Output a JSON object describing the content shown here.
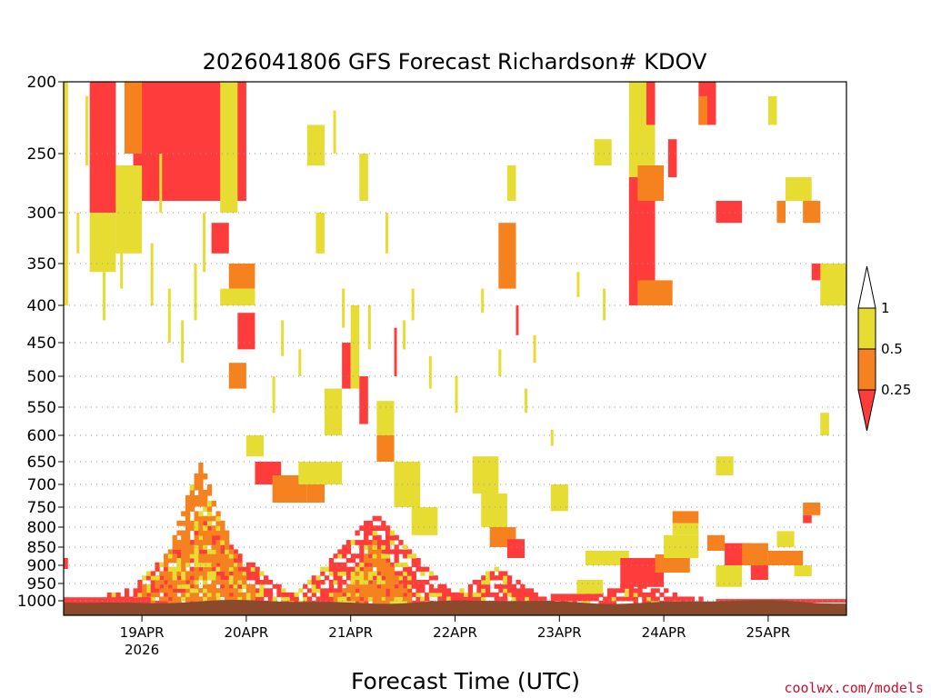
{
  "chart_data": {
    "type": "heatmap",
    "title": "2026041806 GFS Forecast Richardson# KDOV",
    "xlabel": "Forecast Time (UTC)",
    "credit": "coolwx.com/models",
    "y_axis": {
      "scale": "pressure",
      "range": [
        1020,
        200
      ],
      "ticks": [
        200,
        250,
        300,
        350,
        400,
        450,
        500,
        550,
        600,
        650,
        700,
        750,
        800,
        850,
        900,
        950,
        1000
      ],
      "tick_labels": [
        "200",
        "250",
        "300",
        "350",
        "400",
        "450",
        "500",
        "550",
        "600",
        "650",
        "700",
        "750",
        "800",
        "850",
        "900",
        "950",
        "1000"
      ],
      "grid": "dotted"
    },
    "x_axis": {
      "range_hours": [
        0,
        180
      ],
      "ticks": [
        {
          "hour": 18,
          "label": "19APR",
          "sublabel": "2026"
        },
        {
          "hour": 42,
          "label": "20APR",
          "sublabel": ""
        },
        {
          "hour": 66,
          "label": "21APR",
          "sublabel": ""
        },
        {
          "hour": 90,
          "label": "22APR",
          "sublabel": ""
        },
        {
          "hour": 114,
          "label": "23APR",
          "sublabel": ""
        },
        {
          "hour": 138,
          "label": "24APR",
          "sublabel": ""
        },
        {
          "hour": 162,
          "label": "25APR",
          "sublabel": ""
        }
      ]
    },
    "legend": {
      "placement": "right",
      "bins": [
        {
          "range": "<0.25",
          "color": "#ff3c3c"
        },
        {
          "range": "0.25-0.5",
          "color": "#f5821e"
        },
        {
          "range": "0.5-1",
          "color": "#e6dc32"
        },
        {
          "range": ">1",
          "color": "#ffffff"
        }
      ],
      "labels": [
        "1",
        "0.5",
        "0.25"
      ]
    },
    "colors": {
      "low": "#ff3c3c",
      "mid": "#f5821e",
      "high": "#e6dc32",
      "ground": "#8b4a2b"
    },
    "regions": [
      {
        "bin": "high",
        "t": [
          0,
          1
        ],
        "p": [
          200,
          400
        ]
      },
      {
        "bin": "low",
        "t": [
          0,
          1
        ],
        "p": [
          880,
          910
        ]
      },
      {
        "bin": "low",
        "t": [
          6,
          12
        ],
        "p": [
          200,
          300
        ]
      },
      {
        "bin": "high",
        "t": [
          6,
          12
        ],
        "p": [
          300,
          360
        ]
      },
      {
        "bin": "low",
        "t": [
          16,
          42
        ],
        "p": [
          200,
          290
        ]
      },
      {
        "bin": "mid",
        "t": [
          14,
          18
        ],
        "p": [
          200,
          250
        ]
      },
      {
        "bin": "high",
        "t": [
          12,
          18
        ],
        "p": [
          260,
          340
        ]
      },
      {
        "bin": "high",
        "t": [
          36,
          40
        ],
        "p": [
          200,
          300
        ]
      },
      {
        "bin": "low",
        "t": [
          34,
          38
        ],
        "p": [
          310,
          340
        ]
      },
      {
        "bin": "mid",
        "t": [
          38,
          44
        ],
        "p": [
          350,
          380
        ]
      },
      {
        "bin": "high",
        "t": [
          36,
          44
        ],
        "p": [
          380,
          400
        ]
      },
      {
        "bin": "high",
        "t": [
          56,
          60
        ],
        "p": [
          230,
          260
        ]
      },
      {
        "bin": "high",
        "t": [
          58,
          60
        ],
        "p": [
          300,
          340
        ]
      },
      {
        "bin": "high",
        "t": [
          68,
          70
        ],
        "p": [
          250,
          290
        ]
      },
      {
        "bin": "high",
        "t": [
          102,
          104
        ],
        "p": [
          260,
          290
        ]
      },
      {
        "bin": "mid",
        "t": [
          100,
          104
        ],
        "p": [
          310,
          380
        ]
      },
      {
        "bin": "high",
        "t": [
          122,
          126
        ],
        "p": [
          240,
          260
        ]
      },
      {
        "bin": "high",
        "t": [
          130,
          136
        ],
        "p": [
          200,
          270
        ]
      },
      {
        "bin": "low",
        "t": [
          130,
          136
        ],
        "p": [
          270,
          400
        ]
      },
      {
        "bin": "mid",
        "t": [
          132,
          138
        ],
        "p": [
          260,
          290
        ]
      },
      {
        "bin": "mid",
        "t": [
          132,
          140
        ],
        "p": [
          370,
          400
        ]
      },
      {
        "bin": "low",
        "t": [
          134,
          136
        ],
        "p": [
          200,
          230
        ]
      },
      {
        "bin": "low",
        "t": [
          139,
          141
        ],
        "p": [
          240,
          270
        ]
      },
      {
        "bin": "low",
        "t": [
          146,
          150
        ],
        "p": [
          200,
          230
        ]
      },
      {
        "bin": "mid",
        "t": [
          146,
          148
        ],
        "p": [
          210,
          230
        ]
      },
      {
        "bin": "low",
        "t": [
          150,
          156
        ],
        "p": [
          290,
          310
        ]
      },
      {
        "bin": "mid",
        "t": [
          164,
          166
        ],
        "p": [
          290,
          310
        ]
      },
      {
        "bin": "high",
        "t": [
          162,
          164
        ],
        "p": [
          210,
          230
        ]
      },
      {
        "bin": "high",
        "t": [
          166,
          172
        ],
        "p": [
          270,
          290
        ]
      },
      {
        "bin": "mid",
        "t": [
          170,
          174
        ],
        "p": [
          290,
          310
        ]
      },
      {
        "bin": "low",
        "t": [
          172,
          176
        ],
        "p": [
          350,
          370
        ]
      },
      {
        "bin": "high",
        "t": [
          174,
          180
        ],
        "p": [
          350,
          400
        ]
      },
      {
        "bin": "high",
        "t": [
          174,
          176
        ],
        "p": [
          560,
          600
        ]
      },
      {
        "bin": "low",
        "t": [
          40,
          44
        ],
        "p": [
          410,
          460
        ]
      },
      {
        "bin": "mid",
        "t": [
          38,
          42
        ],
        "p": [
          480,
          520
        ]
      },
      {
        "bin": "high",
        "t": [
          42,
          46
        ],
        "p": [
          600,
          640
        ]
      },
      {
        "bin": "low",
        "t": [
          44,
          50
        ],
        "p": [
          650,
          700
        ]
      },
      {
        "bin": "mid",
        "t": [
          48,
          56
        ],
        "p": [
          680,
          740
        ]
      },
      {
        "bin": "high",
        "t": [
          54,
          64
        ],
        "p": [
          650,
          700
        ]
      },
      {
        "bin": "mid",
        "t": [
          56,
          60
        ],
        "p": [
          700,
          740
        ]
      },
      {
        "bin": "high",
        "t": [
          60,
          64
        ],
        "p": [
          520,
          600
        ]
      },
      {
        "bin": "low",
        "t": [
          64,
          66
        ],
        "p": [
          450,
          520
        ]
      },
      {
        "bin": "high",
        "t": [
          66,
          68
        ],
        "p": [
          400,
          520
        ]
      },
      {
        "bin": "low",
        "t": [
          68,
          70
        ],
        "p": [
          500,
          580
        ]
      },
      {
        "bin": "high",
        "t": [
          72,
          76
        ],
        "p": [
          540,
          600
        ]
      },
      {
        "bin": "mid",
        "t": [
          72,
          76
        ],
        "p": [
          600,
          650
        ]
      },
      {
        "bin": "high",
        "t": [
          76,
          82
        ],
        "p": [
          650,
          750
        ]
      },
      {
        "bin": "high",
        "t": [
          80,
          86
        ],
        "p": [
          750,
          820
        ]
      },
      {
        "bin": "high",
        "t": [
          94,
          100
        ],
        "p": [
          640,
          720
        ]
      },
      {
        "bin": "high",
        "t": [
          96,
          102
        ],
        "p": [
          720,
          800
        ]
      },
      {
        "bin": "mid",
        "t": [
          98,
          104
        ],
        "p": [
          800,
          850
        ]
      },
      {
        "bin": "low",
        "t": [
          102,
          106
        ],
        "p": [
          830,
          880
        ]
      },
      {
        "bin": "high",
        "t": [
          112,
          116
        ],
        "p": [
          700,
          760
        ]
      },
      {
        "bin": "high",
        "t": [
          150,
          154
        ],
        "p": [
          640,
          680
        ]
      },
      {
        "bin": "high",
        "t": [
          140,
          146
        ],
        "p": [
          790,
          820
        ]
      },
      {
        "bin": "mid",
        "t": [
          140,
          146
        ],
        "p": [
          760,
          790
        ]
      },
      {
        "bin": "high",
        "t": [
          120,
          130
        ],
        "p": [
          860,
          900
        ]
      },
      {
        "bin": "low",
        "t": [
          128,
          138
        ],
        "p": [
          880,
          960
        ]
      },
      {
        "bin": "mid",
        "t": [
          136,
          144
        ],
        "p": [
          870,
          920
        ]
      },
      {
        "bin": "high",
        "t": [
          138,
          146
        ],
        "p": [
          820,
          880
        ]
      },
      {
        "bin": "mid",
        "t": [
          148,
          152
        ],
        "p": [
          820,
          860
        ]
      },
      {
        "bin": "low",
        "t": [
          152,
          158
        ],
        "p": [
          840,
          900
        ]
      },
      {
        "bin": "mid",
        "t": [
          156,
          162
        ],
        "p": [
          840,
          900
        ]
      },
      {
        "bin": "low",
        "t": [
          158,
          162
        ],
        "p": [
          900,
          940
        ]
      },
      {
        "bin": "high",
        "t": [
          150,
          156
        ],
        "p": [
          900,
          960
        ]
      },
      {
        "bin": "mid",
        "t": [
          162,
          170
        ],
        "p": [
          860,
          900
        ]
      },
      {
        "bin": "high",
        "t": [
          164,
          168
        ],
        "p": [
          810,
          850
        ]
      },
      {
        "bin": "mid",
        "t": [
          170,
          174
        ],
        "p": [
          740,
          770
        ]
      },
      {
        "bin": "low",
        "t": [
          170,
          172
        ],
        "p": [
          770,
          790
        ]
      },
      {
        "bin": "high",
        "t": [
          168,
          172
        ],
        "p": [
          900,
          930
        ]
      },
      {
        "bin": "low",
        "t": [
          112,
          122
        ],
        "p": [
          980,
          1000
        ]
      },
      {
        "bin": "high",
        "t": [
          118,
          124
        ],
        "p": [
          940,
          980
        ]
      },
      {
        "bin": "low",
        "t": [
          150,
          180
        ],
        "p": [
          995,
          1005
        ]
      },
      {
        "bin": "low",
        "t": [
          0,
          20
        ],
        "p": [
          990,
          1010
        ]
      }
    ],
    "plumes": [
      {
        "t0": 10,
        "t1": 54,
        "p_top": 780,
        "bin": "low"
      },
      {
        "t0": 18,
        "t1": 44,
        "p_top": 640,
        "bin": "mid"
      },
      {
        "t0": 50,
        "t1": 92,
        "p_top": 760,
        "bin": "low"
      },
      {
        "t0": 62,
        "t1": 80,
        "p_top": 820,
        "bin": "mid"
      },
      {
        "t0": 86,
        "t1": 112,
        "p_top": 900,
        "bin": "low"
      },
      {
        "t0": 112,
        "t1": 150,
        "p_top": 940,
        "bin": "low"
      }
    ]
  }
}
